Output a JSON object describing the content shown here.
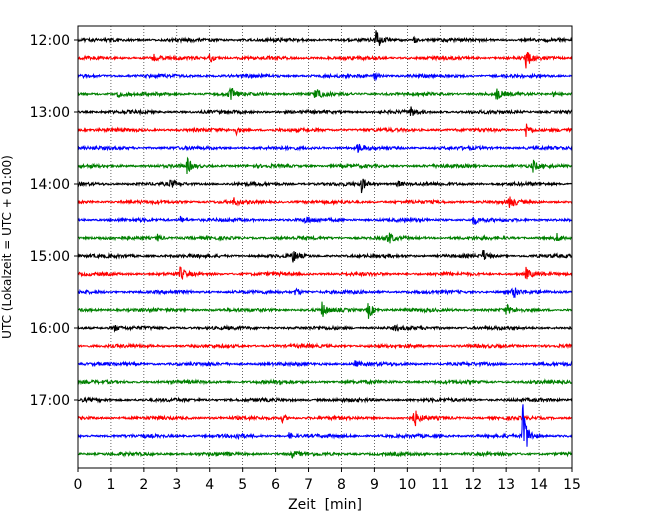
{
  "chart_data": {
    "type": "line",
    "subtype": "helicorder",
    "xlabel": "Zeit  [min]",
    "ylabel": "UTC (Lokalzeit = UTC + 01:00)",
    "xlim": [
      0,
      15
    ],
    "x_ticks": [
      "0",
      "1",
      "2",
      "3",
      "4",
      "5",
      "6",
      "7",
      "8",
      "9",
      "10",
      "11",
      "12",
      "13",
      "14",
      "15"
    ],
    "y_ticks": [
      "12:00",
      "13:00",
      "14:00",
      "15:00",
      "16:00",
      "17:00"
    ],
    "row_interval_min": 15,
    "start_time": "12:00",
    "trace_colors": [
      "#000000",
      "#ff0000",
      "#0000ff",
      "#008000"
    ],
    "grid": "vertical dotted",
    "traces": [
      {
        "time": "12:00",
        "events": [
          {
            "t": 9.05,
            "amp": 10
          },
          {
            "t": 10.2,
            "amp": 3
          }
        ]
      },
      {
        "time": "12:15",
        "events": [
          {
            "t": 2.3,
            "amp": 3
          },
          {
            "t": 4.0,
            "amp": 5
          },
          {
            "t": 13.6,
            "amp": 10
          }
        ]
      },
      {
        "time": "12:30",
        "events": [
          {
            "t": 9.0,
            "amp": 4
          }
        ]
      },
      {
        "time": "12:45",
        "events": [
          {
            "t": 1.2,
            "amp": 4
          },
          {
            "t": 4.6,
            "amp": 9
          },
          {
            "t": 7.2,
            "amp": 7
          },
          {
            "t": 12.7,
            "amp": 6
          },
          {
            "t": 14.4,
            "amp": 3
          }
        ]
      },
      {
        "time": "13:00",
        "events": [
          {
            "t": 10.1,
            "amp": 5
          }
        ]
      },
      {
        "time": "13:15",
        "events": [
          {
            "t": 4.8,
            "amp": 4
          },
          {
            "t": 13.6,
            "amp": 8
          }
        ]
      },
      {
        "time": "13:30",
        "events": [
          {
            "t": 8.5,
            "amp": 5
          }
        ]
      },
      {
        "time": "13:45",
        "events": [
          {
            "t": 3.3,
            "amp": 8
          },
          {
            "t": 13.8,
            "amp": 6
          }
        ]
      },
      {
        "time": "14:00",
        "events": [
          {
            "t": 2.8,
            "amp": 4
          },
          {
            "t": 8.6,
            "amp": 8
          },
          {
            "t": 9.7,
            "amp": 4
          }
        ]
      },
      {
        "time": "14:15",
        "events": [
          {
            "t": 4.7,
            "amp": 4
          },
          {
            "t": 13.1,
            "amp": 7
          }
        ]
      },
      {
        "time": "14:30",
        "events": [
          {
            "t": 3.1,
            "amp": 4
          },
          {
            "t": 6.9,
            "amp": 4
          },
          {
            "t": 12.0,
            "amp": 5
          }
        ]
      },
      {
        "time": "14:45",
        "events": [
          {
            "t": 2.4,
            "amp": 4
          },
          {
            "t": 9.4,
            "amp": 7
          },
          {
            "t": 14.5,
            "amp": 5
          }
        ]
      },
      {
        "time": "15:00",
        "events": [
          {
            "t": 6.5,
            "amp": 7
          },
          {
            "t": 12.3,
            "amp": 6
          }
        ]
      },
      {
        "time": "15:15",
        "events": [
          {
            "t": 3.1,
            "amp": 7
          },
          {
            "t": 13.6,
            "amp": 6
          }
        ]
      },
      {
        "time": "15:30",
        "events": [
          {
            "t": 6.6,
            "amp": 5
          },
          {
            "t": 13.2,
            "amp": 7
          }
        ]
      },
      {
        "time": "15:45",
        "events": [
          {
            "t": 7.4,
            "amp": 8
          },
          {
            "t": 8.8,
            "amp": 10
          },
          {
            "t": 13.0,
            "amp": 5
          }
        ]
      },
      {
        "time": "16:00",
        "events": [
          {
            "t": 1.1,
            "amp": 3
          },
          {
            "t": 9.6,
            "amp": 3
          }
        ]
      },
      {
        "time": "16:15",
        "events": []
      },
      {
        "time": "16:30",
        "events": [
          {
            "t": 8.4,
            "amp": 3
          }
        ]
      },
      {
        "time": "16:45",
        "events": [
          {
            "t": 6.1,
            "amp": 3
          }
        ]
      },
      {
        "time": "17:00",
        "events": []
      },
      {
        "time": "17:15",
        "events": [
          {
            "t": 6.2,
            "amp": 4
          },
          {
            "t": 10.2,
            "amp": 10
          }
        ]
      },
      {
        "time": "17:30",
        "events": [
          {
            "t": 4.8,
            "amp": 3
          },
          {
            "t": 6.4,
            "amp": 3
          },
          {
            "t": 13.5,
            "amp": 34
          }
        ]
      },
      {
        "time": "17:45",
        "events": [
          {
            "t": 6.5,
            "amp": 3
          }
        ]
      }
    ]
  }
}
